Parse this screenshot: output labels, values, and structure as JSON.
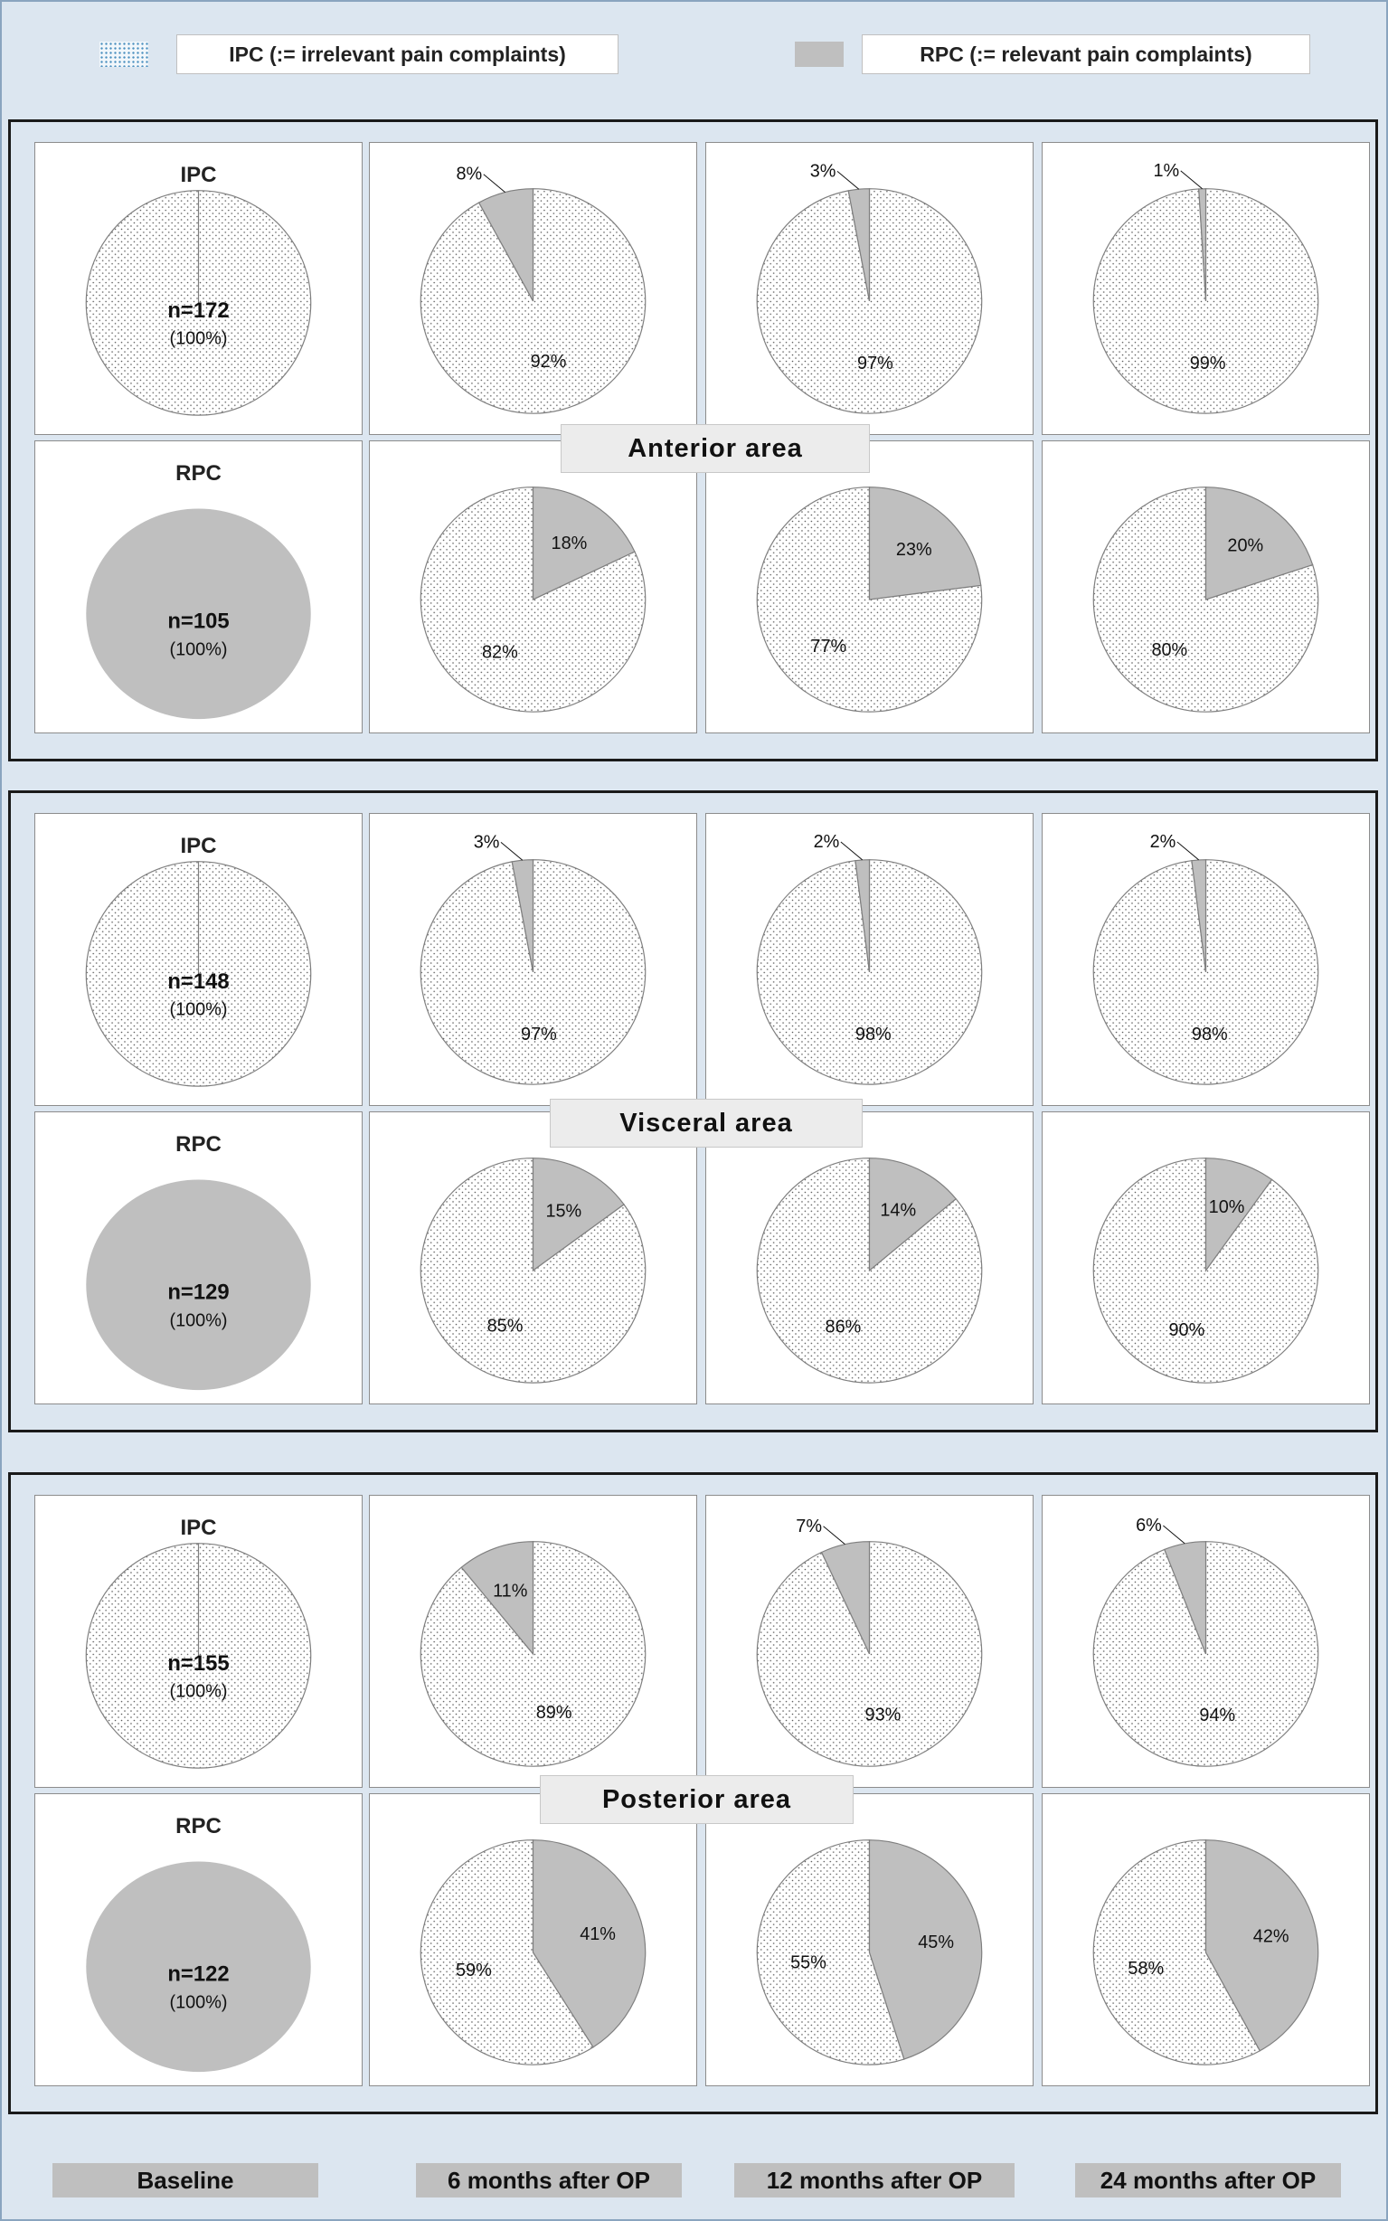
{
  "legend": {
    "ipc_label": "IPC (:= irrelevant pain complaints)",
    "rpc_label": "RPC (:= relevant pain complaints)"
  },
  "colors": {
    "ipc_fill": "#ffffff",
    "ipc_dots": "#555555",
    "rpc_fill": "#bfbfbf",
    "outline": "#7f7f7f",
    "background": "#dce6f0"
  },
  "timepoints": [
    "Baseline",
    "6 months  after OP",
    "12 months after OP",
    "24 months after OP"
  ],
  "chart_data": [
    {
      "type": "pie",
      "area": "Anterior area",
      "rows": [
        {
          "group": "IPC",
          "baseline_n": "n=172",
          "baseline_pct": "(100%)",
          "followups": [
            {
              "rpc": 8,
              "ipc": 92,
              "rpc_label": "8%",
              "ipc_label": "92%"
            },
            {
              "rpc": 3,
              "ipc": 97,
              "rpc_label": "3%",
              "ipc_label": "97%"
            },
            {
              "rpc": 1,
              "ipc": 99,
              "rpc_label": "1%",
              "ipc_label": "99%"
            }
          ]
        },
        {
          "group": "RPC",
          "baseline_n": "n=105",
          "baseline_pct": "(100%)",
          "followups": [
            {
              "rpc": 18,
              "ipc": 82,
              "rpc_label": "18%",
              "ipc_label": "82%"
            },
            {
              "rpc": 23,
              "ipc": 77,
              "rpc_label": "23%",
              "ipc_label": "77%"
            },
            {
              "rpc": 20,
              "ipc": 80,
              "rpc_label": "20%",
              "ipc_label": "80%"
            }
          ]
        }
      ]
    },
    {
      "type": "pie",
      "area": "Visceral area",
      "rows": [
        {
          "group": "IPC",
          "baseline_n": "n=148",
          "baseline_pct": "(100%)",
          "followups": [
            {
              "rpc": 3,
              "ipc": 97,
              "rpc_label": "3%",
              "ipc_label": "97%"
            },
            {
              "rpc": 2,
              "ipc": 98,
              "rpc_label": "2%",
              "ipc_label": "98%"
            },
            {
              "rpc": 2,
              "ipc": 98,
              "rpc_label": "2%",
              "ipc_label": "98%"
            }
          ]
        },
        {
          "group": "RPC",
          "baseline_n": "n=129",
          "baseline_pct": "(100%)",
          "followups": [
            {
              "rpc": 15,
              "ipc": 85,
              "rpc_label": "15%",
              "ipc_label": "85%"
            },
            {
              "rpc": 14,
              "ipc": 86,
              "rpc_label": "14%",
              "ipc_label": "86%"
            },
            {
              "rpc": 10,
              "ipc": 90,
              "rpc_label": "10%",
              "ipc_label": "90%"
            }
          ]
        }
      ]
    },
    {
      "type": "pie",
      "area": "Posterior area",
      "rows": [
        {
          "group": "IPC",
          "baseline_n": "n=155",
          "baseline_pct": "(100%)",
          "followups": [
            {
              "rpc": 11,
              "ipc": 89,
              "rpc_label": "11%",
              "ipc_label": "89%"
            },
            {
              "rpc": 7,
              "ipc": 93,
              "rpc_label": "7%",
              "ipc_label": "93%"
            },
            {
              "rpc": 6,
              "ipc": 94,
              "rpc_label": "6%",
              "ipc_label": "94%"
            }
          ]
        },
        {
          "group": "RPC",
          "baseline_n": "n=122",
          "baseline_pct": "(100%)",
          "followups": [
            {
              "rpc": 41,
              "ipc": 59,
              "rpc_label": "41%",
              "ipc_label": "59%"
            },
            {
              "rpc": 45,
              "ipc": 55,
              "rpc_label": "45%",
              "ipc_label": "55%"
            },
            {
              "rpc": 42,
              "ipc": 58,
              "rpc_label": "42%",
              "ipc_label": "58%"
            }
          ]
        }
      ]
    }
  ]
}
